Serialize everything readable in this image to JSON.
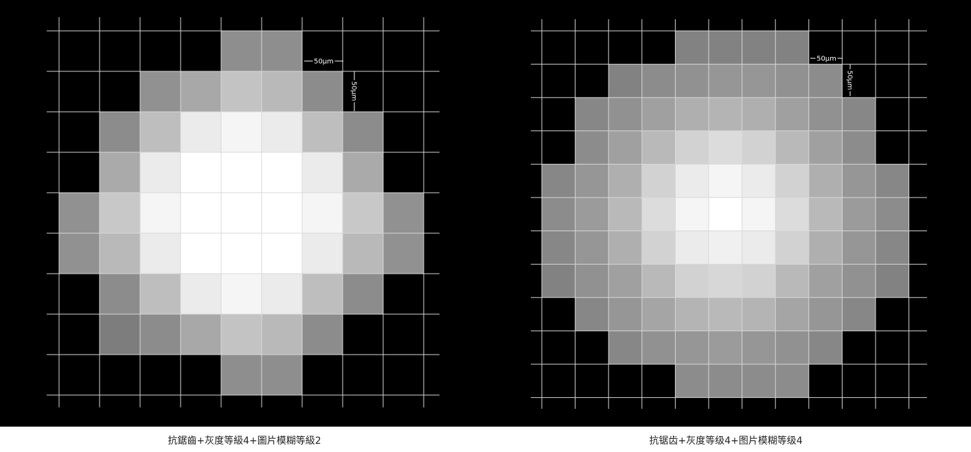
{
  "captions": {
    "left": "抗鋸齒+灰度等級4+圖片模糊等級2",
    "right": "抗锯齿+灰度等级4+图片模糊等级4"
  },
  "panels": [
    {
      "id": "left",
      "scale_bar_horizontal": "50μm",
      "scale_bar_vertical": "50μm",
      "pixel_grid": [
        [
          0,
          0,
          0,
          0,
          142,
          142,
          0,
          0,
          0
        ],
        [
          0,
          0,
          145,
          168,
          195,
          185,
          140,
          0,
          0
        ],
        [
          0,
          140,
          190,
          235,
          245,
          235,
          190,
          140,
          0
        ],
        [
          0,
          170,
          235,
          255,
          255,
          255,
          235,
          170,
          0
        ],
        [
          145,
          200,
          245,
          255,
          255,
          255,
          245,
          200,
          145
        ],
        [
          145,
          185,
          235,
          255,
          255,
          255,
          235,
          185,
          145
        ],
        [
          0,
          140,
          190,
          235,
          245,
          235,
          190,
          140,
          0
        ],
        [
          0,
          125,
          140,
          168,
          195,
          185,
          140,
          0,
          0
        ],
        [
          0,
          0,
          0,
          0,
          142,
          142,
          0,
          0,
          0
        ]
      ]
    },
    {
      "id": "right",
      "scale_bar_horizontal": "50μm",
      "scale_bar_vertical": "50μm",
      "pixel_grid": [
        [
          0,
          0,
          0,
          0,
          130,
          130,
          130,
          130,
          0,
          0,
          0
        ],
        [
          0,
          0,
          130,
          140,
          145,
          150,
          150,
          145,
          140,
          0,
          0
        ],
        [
          0,
          135,
          145,
          160,
          175,
          180,
          175,
          160,
          145,
          135,
          0
        ],
        [
          0,
          140,
          160,
          185,
          210,
          220,
          210,
          185,
          160,
          140,
          0
        ],
        [
          135,
          150,
          175,
          210,
          235,
          245,
          235,
          210,
          175,
          150,
          135
        ],
        [
          140,
          155,
          185,
          220,
          245,
          255,
          245,
          220,
          185,
          155,
          140
        ],
        [
          135,
          150,
          175,
          210,
          235,
          240,
          235,
          210,
          175,
          150,
          135
        ],
        [
          130,
          145,
          160,
          185,
          210,
          215,
          210,
          185,
          160,
          145,
          130
        ],
        [
          0,
          135,
          150,
          165,
          180,
          185,
          180,
          165,
          150,
          135,
          0
        ],
        [
          0,
          0,
          135,
          145,
          150,
          155,
          150,
          145,
          135,
          0,
          0
        ],
        [
          0,
          0,
          0,
          0,
          140,
          140,
          140,
          140,
          0,
          0,
          0
        ]
      ]
    }
  ]
}
